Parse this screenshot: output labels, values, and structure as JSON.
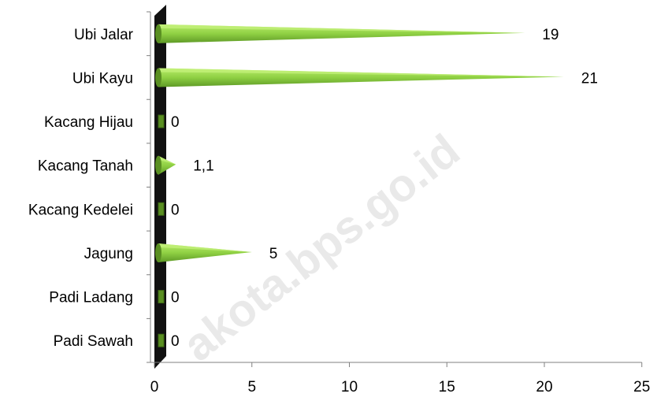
{
  "chart_data": {
    "type": "bar",
    "orientation": "horizontal",
    "style": "3d-cone",
    "categories": [
      "Padi Sawah",
      "Padi Ladang",
      "Jagung",
      "Kacang Kedelei",
      "Kacang Tanah",
      "Kacang Hijau",
      "Ubi Kayu",
      "Ubi Jalar"
    ],
    "values": [
      0,
      0,
      5,
      0,
      1.1,
      0,
      21,
      19
    ],
    "data_labels": [
      "0",
      "0",
      "5",
      "0",
      "1,1",
      "0",
      "21",
      "19"
    ],
    "xlim": [
      0,
      25
    ],
    "x_ticks": [
      0,
      5,
      10,
      15,
      20,
      25
    ],
    "x_tick_labels": [
      "0",
      "5",
      "10",
      "15",
      "20",
      "25"
    ],
    "title": "",
    "xlabel": "",
    "ylabel": "",
    "grid": false,
    "legend": "none",
    "colors": {
      "bar_light": "#9ad84a",
      "bar_dark": "#5a8f22",
      "wall": "#111111"
    }
  },
  "watermark": "akota.bps.go.id"
}
